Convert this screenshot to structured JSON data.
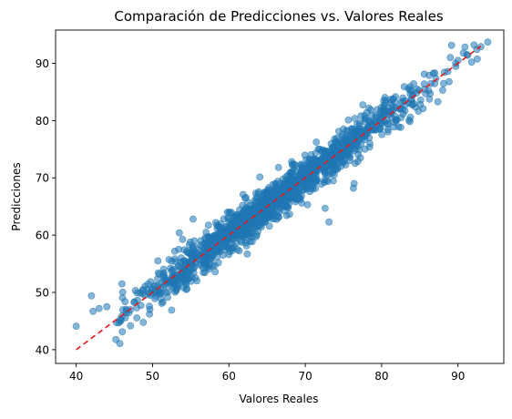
{
  "chart_data": {
    "type": "scatter",
    "title": "Comparación de Predicciones vs. Valores Reales",
    "xlabel": "Valores Reales",
    "ylabel": "Predicciones",
    "xlim": [
      37.3,
      96.0
    ],
    "ylim": [
      37.6,
      95.8
    ],
    "xticks": [
      40,
      50,
      60,
      70,
      80,
      90
    ],
    "yticks": [
      40,
      50,
      60,
      70,
      80,
      90
    ],
    "grid": false,
    "point_color": "#1f77b4",
    "point_alpha": 0.55,
    "reference_line": {
      "style": "dashed",
      "color": "#e41a1c",
      "from": [
        40.0,
        40.0
      ],
      "to": [
        93.0,
        93.0
      ]
    },
    "trend": {
      "description": "dense band of points along y = x",
      "x_range": [
        45,
        93
      ],
      "slope": 1.0,
      "intercept": 0.0,
      "spread_sd": 1.6
    },
    "notable_points": [
      {
        "x": 40.0,
        "y": 44.1
      },
      {
        "x": 42.0,
        "y": 49.4
      },
      {
        "x": 42.2,
        "y": 46.7
      },
      {
        "x": 43.0,
        "y": 47.2
      },
      {
        "x": 44.0,
        "y": 47.5
      },
      {
        "x": 45.3,
        "y": 44.7
      },
      {
        "x": 46.0,
        "y": 51.5
      },
      {
        "x": 50.7,
        "y": 55.5
      },
      {
        "x": 51.2,
        "y": 48.1
      },
      {
        "x": 52.5,
        "y": 46.9
      },
      {
        "x": 52.9,
        "y": 57.2
      },
      {
        "x": 53.5,
        "y": 60.4
      },
      {
        "x": 55.3,
        "y": 62.8
      },
      {
        "x": 55.8,
        "y": 52.0
      },
      {
        "x": 58.2,
        "y": 53.6
      },
      {
        "x": 59.8,
        "y": 64.0
      },
      {
        "x": 62.4,
        "y": 56.7
      },
      {
        "x": 63.0,
        "y": 60.4
      },
      {
        "x": 63.6,
        "y": 66.6
      },
      {
        "x": 66.5,
        "y": 71.8
      },
      {
        "x": 70.3,
        "y": 65.3
      },
      {
        "x": 72.6,
        "y": 64.7
      },
      {
        "x": 73.1,
        "y": 62.3
      },
      {
        "x": 73.7,
        "y": 75.4
      },
      {
        "x": 75.5,
        "y": 74.0
      },
      {
        "x": 76.3,
        "y": 68.2
      },
      {
        "x": 76.4,
        "y": 69.0
      },
      {
        "x": 77.3,
        "y": 80.8
      },
      {
        "x": 81.2,
        "y": 83.0
      },
      {
        "x": 85.6,
        "y": 88.1
      },
      {
        "x": 88.0,
        "y": 85.3
      },
      {
        "x": 89.0,
        "y": 91.0
      },
      {
        "x": 90.0,
        "y": 90.5
      },
      {
        "x": 90.7,
        "y": 91.8
      },
      {
        "x": 92.1,
        "y": 93.2
      },
      {
        "x": 93.0,
        "y": 92.9
      },
      {
        "x": 93.9,
        "y": 93.7
      }
    ]
  }
}
